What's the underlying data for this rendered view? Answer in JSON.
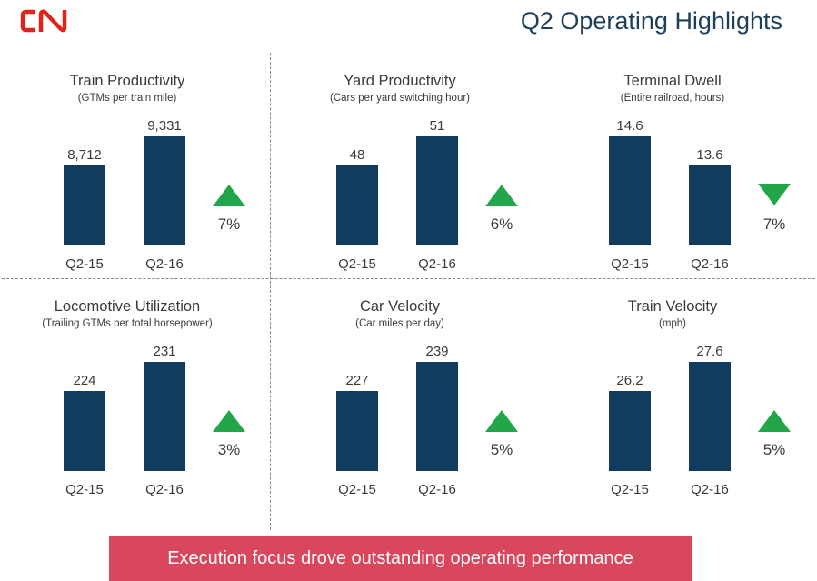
{
  "header": {
    "logo_text": "CN",
    "title": "Q2 Operating Highlights",
    "logo_color": "#e2231a"
  },
  "colors": {
    "bar": "#123c5e",
    "increase_arrow": "#22a64a",
    "banner": "#d9475d",
    "title": "#1e3f5a"
  },
  "chart_data": [
    {
      "type": "bar",
      "title": "Train Productivity",
      "subtitle": "(GTMs per train mile)",
      "categories": [
        "Q2-15",
        "Q2-16"
      ],
      "values": [
        8712,
        9331
      ],
      "value_labels": [
        "8,712",
        "9,331"
      ],
      "change": "7%",
      "direction": "up"
    },
    {
      "type": "bar",
      "title": "Yard Productivity",
      "subtitle": "(Cars per yard switching hour)",
      "categories": [
        "Q2-15",
        "Q2-16"
      ],
      "values": [
        48,
        51
      ],
      "value_labels": [
        "48",
        "51"
      ],
      "change": "6%",
      "direction": "up"
    },
    {
      "type": "bar",
      "title": "Terminal Dwell",
      "subtitle": "(Entire railroad, hours)",
      "categories": [
        "Q2-15",
        "Q2-16"
      ],
      "values": [
        14.6,
        13.6
      ],
      "value_labels": [
        "14.6",
        "13.6"
      ],
      "change": "7%",
      "direction": "down"
    },
    {
      "type": "bar",
      "title": "Locomotive Utilization",
      "subtitle": "(Trailing GTMs per total horsepower)",
      "categories": [
        "Q2-15",
        "Q2-16"
      ],
      "values": [
        224,
        231
      ],
      "value_labels": [
        "224",
        "231"
      ],
      "change": "3%",
      "direction": "up"
    },
    {
      "type": "bar",
      "title": "Car Velocity",
      "subtitle": "(Car miles per day)",
      "categories": [
        "Q2-15",
        "Q2-16"
      ],
      "values": [
        227,
        239
      ],
      "value_labels": [
        "227",
        "239"
      ],
      "change": "5%",
      "direction": "up"
    },
    {
      "type": "bar",
      "title": "Train Velocity",
      "subtitle": "(mph)",
      "categories": [
        "Q2-15",
        "Q2-16"
      ],
      "values": [
        26.2,
        27.6
      ],
      "value_labels": [
        "26.2",
        "27.6"
      ],
      "change": "5%",
      "direction": "up"
    }
  ],
  "banner": {
    "text": "Execution focus drove outstanding operating performance"
  }
}
